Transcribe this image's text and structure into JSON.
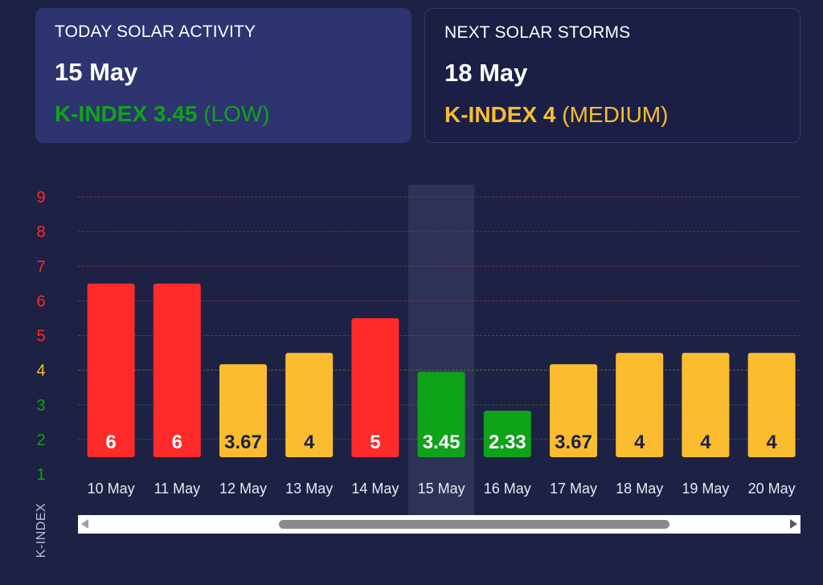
{
  "today": {
    "title": "TODAY SOLAR ACTIVITY",
    "date": "15 May",
    "kindex_label": "K-INDEX 3.45",
    "level": "(LOW)",
    "color": "#0fa31a"
  },
  "next": {
    "title": "NEXT SOLAR STORMS",
    "date": "18 May",
    "kindex_label": "K-INDEX 4",
    "level": "(MEDIUM)",
    "color": "#fbbd2f"
  },
  "colors": {
    "high": "#ff2a2a",
    "medium": "#fbbd2f",
    "low": "#0fa31a",
    "background": "#1d2143"
  },
  "scrollbar": {
    "left_icon": "scroll-left-arrow-icon",
    "right_icon": "scroll-right-arrow-icon"
  },
  "chart_data": {
    "type": "bar",
    "ylabel": "K-INDEX",
    "xlabel": "",
    "title": "",
    "ylim": [
      1,
      9
    ],
    "yticks": [
      1,
      2,
      3,
      4,
      5,
      6,
      7,
      8,
      9
    ],
    "categories": [
      "10 May",
      "11 May",
      "12 May",
      "13 May",
      "14 May",
      "15 May",
      "16 May",
      "17 May",
      "18 May",
      "19 May",
      "20 May"
    ],
    "values": [
      6,
      6,
      3.67,
      4,
      5,
      3.45,
      2.33,
      3.67,
      4,
      4,
      4
    ],
    "value_labels": [
      "6",
      "6",
      "3.67",
      "4",
      "5",
      "3.45",
      "2.33",
      "3.67",
      "4",
      "4",
      "4"
    ],
    "highlighted_category": "15 May",
    "grid": true
  }
}
